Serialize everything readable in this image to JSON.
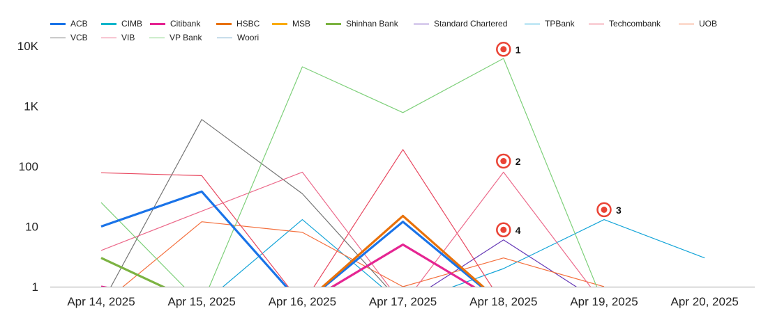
{
  "chart_data": {
    "type": "line",
    "title": "",
    "xlabel": "",
    "ylabel": "",
    "yscale": "log",
    "ylim": [
      1,
      10000
    ],
    "yticks": [
      {
        "value": 1,
        "label": "1"
      },
      {
        "value": 10,
        "label": "10"
      },
      {
        "value": 100,
        "label": "100"
      },
      {
        "value": 1000,
        "label": "1K"
      },
      {
        "value": 10000,
        "label": "10K"
      }
    ],
    "categories": [
      "Apr 14, 2025",
      "Apr 15, 2025",
      "Apr 16, 2025",
      "Apr 17, 2025",
      "Apr 18, 2025",
      "Apr 19, 2025",
      "Apr 20, 2025"
    ],
    "legend_position": "top-left",
    "series": [
      {
        "name": "ACB",
        "color": "#1a73e8",
        "weight": "bold",
        "values": [
          10,
          38,
          0,
          12,
          0,
          null,
          null
        ]
      },
      {
        "name": "CIMB",
        "color": "#12b5cb",
        "weight": "bold",
        "values": [
          null,
          null,
          null,
          null,
          null,
          null,
          null
        ]
      },
      {
        "name": "Citibank",
        "color": "#e52592",
        "weight": "bold",
        "values": [
          1,
          0,
          0,
          5,
          0,
          null,
          null
        ]
      },
      {
        "name": "HSBC",
        "color": "#e8710a",
        "weight": "bold",
        "values": [
          null,
          null,
          0,
          15,
          0,
          null,
          null
        ]
      },
      {
        "name": "MSB",
        "color": "#f9ab00",
        "weight": "bold",
        "values": [
          null,
          null,
          null,
          null,
          null,
          null,
          null
        ]
      },
      {
        "name": "Shinhan Bank",
        "color": "#7cb342",
        "weight": "bold",
        "values": [
          3,
          0,
          null,
          null,
          null,
          null,
          null
        ]
      },
      {
        "name": "Standard Chartered",
        "color": "#673ab7",
        "weight": "thin",
        "values": [
          null,
          null,
          null,
          0,
          6,
          0,
          null
        ]
      },
      {
        "name": "TPBank",
        "color": "#12a4d8",
        "weight": "thin",
        "values": [
          null,
          0,
          13,
          0,
          2,
          13,
          3
        ]
      },
      {
        "name": "Techcombank",
        "color": "#e8475f",
        "weight": "thin",
        "values": [
          78,
          70,
          0,
          190,
          0,
          null,
          null
        ]
      },
      {
        "name": "UOB",
        "color": "#f4703e",
        "weight": "thin",
        "values": [
          0,
          12,
          8,
          1,
          3,
          1,
          null
        ]
      },
      {
        "name": "VCB",
        "color": "#757575",
        "weight": "thin",
        "values": [
          0,
          600,
          35,
          0,
          null,
          null,
          null
        ]
      },
      {
        "name": "VIB",
        "color": "#ec6a8b",
        "weight": "thin",
        "values": [
          4,
          18,
          80,
          0,
          80,
          0,
          null
        ]
      },
      {
        "name": "VP Bank",
        "color": "#7ed07a",
        "weight": "thin",
        "values": [
          25,
          0,
          4500,
          780,
          6200,
          0,
          null
        ]
      },
      {
        "name": "Woori",
        "color": "#6fa8c9",
        "weight": "thin",
        "values": [
          null,
          null,
          null,
          null,
          null,
          null,
          null
        ]
      }
    ],
    "annotations": [
      {
        "label": "1",
        "category": "Apr 18, 2025",
        "value": 8800
      },
      {
        "label": "2",
        "category": "Apr 18, 2025",
        "value": 122
      },
      {
        "label": "3",
        "category": "Apr 19, 2025",
        "value": 19
      },
      {
        "label": "4",
        "category": "Apr 18, 2025",
        "value": 8.8
      }
    ]
  }
}
